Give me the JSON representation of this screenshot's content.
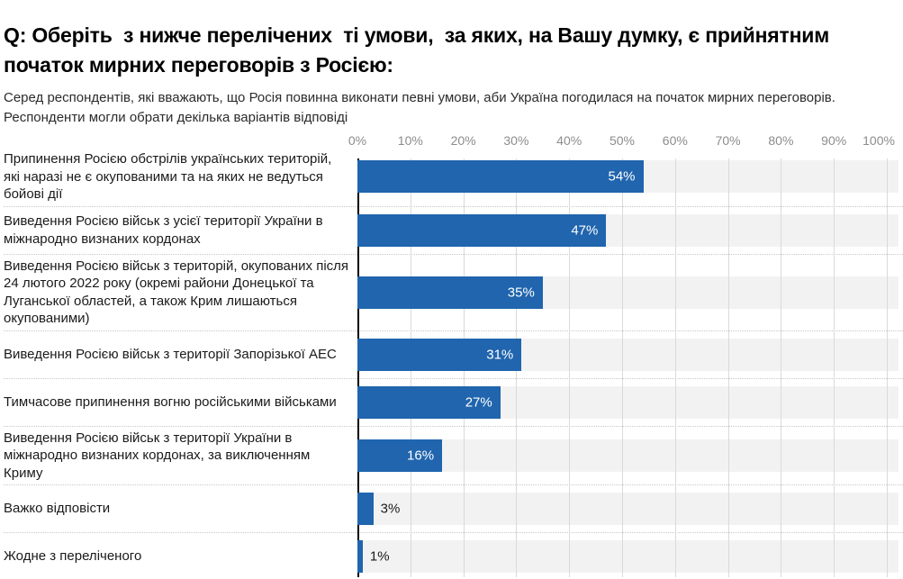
{
  "header": {
    "title": "Q: Оберіть  з нижче перелічених  ті умови,  за яких, на Вашу думку, є прийнятним початок мирних переговорів з Росією:",
    "subtitle": "Серед респондентів, які вважають, що Росія повинна виконати певні умови, аби Україна погодилася на початок мирних переговорів. Респонденти могли обрати декілька варіантів відповіді"
  },
  "colors": {
    "bar": "#2065ae",
    "track": "#f2f2f2",
    "gridline": "#dadada",
    "axis_line": "#000000",
    "tick_text": "#8c8c8c",
    "label_text": "#1a1a1a",
    "value_inside": "#ffffff",
    "value_outside": "#1a1a1a",
    "separator": "#c8c8c8"
  },
  "chart_data": {
    "type": "bar",
    "orientation": "horizontal",
    "categories": [
      "Припинення Росією обстрілів українських територій, які наразі не є окупованими та на яких не ведуться бойові дії",
      "Виведення Росією військ з усієї території України в міжнародно визнаних кордонах",
      "Виведення Росією військ з територій, окупованих після 24 лютого 2022 року (окремі райони Донецької та Луганської областей, а також Крим лишаються окупованими)",
      "Виведення Росією військ з території Запорізької АЕС",
      "Тимчасове припинення вогню російськими військами",
      "Виведення Росією військ з території України в міжнародно визнаних кордонах, за виключенням Криму",
      "Важко відповісти",
      "Жодне з переліченого"
    ],
    "values": [
      54,
      47,
      35,
      31,
      27,
      16,
      3,
      1
    ],
    "value_labels": [
      "54%",
      "47%",
      "35%",
      "31%",
      "27%",
      "16%",
      "3%",
      "1%"
    ],
    "x_ticks": [
      "0%",
      "10%",
      "20%",
      "30%",
      "40%",
      "50%",
      "60%",
      "70%",
      "80%",
      "90%",
      "100%"
    ],
    "xlabel": "",
    "ylabel": "",
    "xlim": [
      0,
      100
    ],
    "grid": true,
    "legend": false
  }
}
